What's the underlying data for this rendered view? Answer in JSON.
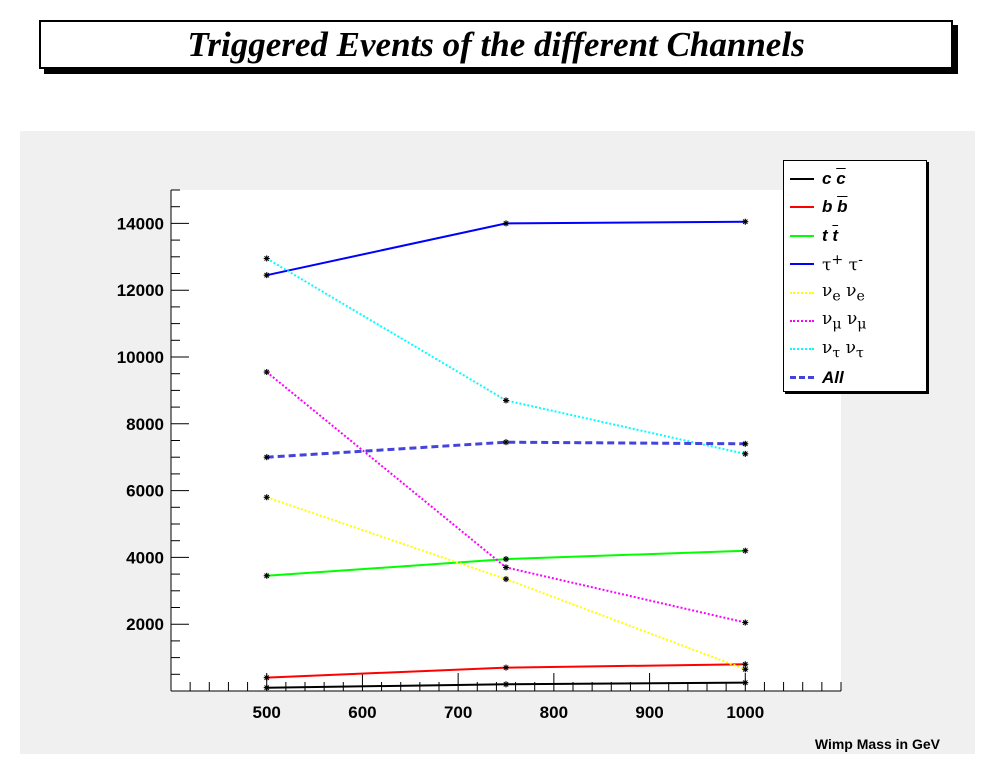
{
  "chart_data": {
    "type": "line",
    "title": "Triggered Events of the different Channels",
    "xlabel": "Wimp Mass in GeV",
    "ylabel": "",
    "xlim": [
      400,
      1100
    ],
    "ylim": [
      0,
      15000
    ],
    "x_ticks": [
      500,
      600,
      700,
      800,
      900,
      1000
    ],
    "y_ticks": [
      2000,
      4000,
      6000,
      8000,
      10000,
      12000,
      14000
    ],
    "x": [
      500,
      750,
      1000
    ],
    "legend_position": "top-right",
    "grid": false,
    "series": [
      {
        "name": "c c",
        "html": "c <span style=\"text-decoration:overline\">c</span>",
        "color": "#000000",
        "dash": "solid",
        "width": 2,
        "values": [
          100,
          200,
          250
        ]
      },
      {
        "name": "b b",
        "html": "b <span style=\"text-decoration:overline\">b</span>",
        "color": "#ff0000",
        "dash": "solid",
        "width": 2,
        "values": [
          400,
          700,
          800
        ]
      },
      {
        "name": "t t",
        "html": "t <span style=\"text-decoration:overline\">t</span>",
        "color": "#00ff00",
        "dash": "solid",
        "width": 2,
        "values": [
          3450,
          3950,
          4200
        ]
      },
      {
        "name": "τ+ τ-",
        "html": "τ<sup>+</sup> τ<sup>-</sup>",
        "color": "#0000ff",
        "dash": "solid",
        "width": 2,
        "values": [
          12450,
          14000,
          14050
        ]
      },
      {
        "name": "νe νe",
        "html": "ν<sub>e</sub> ν<sub>e</sub>",
        "color": "#ffff00",
        "dash": "dotted",
        "width": 2,
        "values": [
          5800,
          3350,
          650
        ]
      },
      {
        "name": "νμ νμ",
        "html": "ν<sub>μ</sub> ν<sub>μ</sub>",
        "color": "#ff00ff",
        "dash": "dotted",
        "width": 2,
        "values": [
          9550,
          3700,
          2050
        ]
      },
      {
        "name": "ντ ντ",
        "html": "ν<sub>τ</sub> ν<sub>τ</sub>",
        "color": "#00ffff",
        "dash": "dotted",
        "width": 2,
        "values": [
          12950,
          8700,
          7100
        ]
      },
      {
        "name": "All",
        "html": "All",
        "color": "#4444dd",
        "dash": "dashed",
        "width": 3,
        "values": [
          7000,
          7450,
          7400
        ]
      }
    ]
  }
}
